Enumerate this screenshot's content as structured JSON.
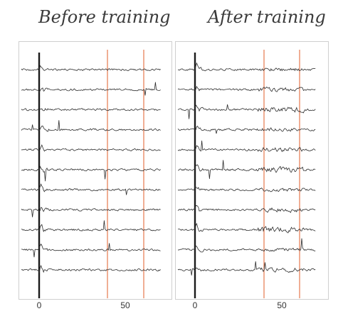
{
  "panels": {
    "left": {
      "title": "Before training",
      "tick_labels": [
        "0",
        "50"
      ],
      "trace_count": 11,
      "marker_lines_color": "#e8835a"
    },
    "right": {
      "title": "After training",
      "tick_labels": [
        "0",
        "50"
      ],
      "trace_count": 11,
      "marker_lines_color": "#e8835a"
    }
  }
}
